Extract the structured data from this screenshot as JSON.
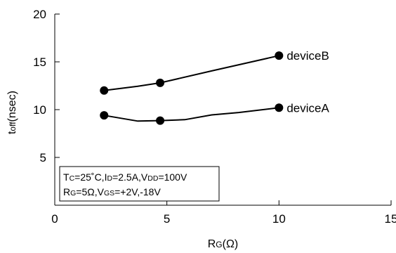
{
  "chart_data": {
    "type": "line",
    "xlabel": {
      "main": "R",
      "sub": "G",
      "rest": "(Ω)"
    },
    "ylabel": {
      "main": "t",
      "sub": "off",
      "rest": "(nsec)"
    },
    "xlim": [
      0,
      15
    ],
    "ylim": [
      0,
      20
    ],
    "xticks": [
      0,
      5,
      10,
      15
    ],
    "yticks": [
      5,
      10,
      15,
      20
    ],
    "grid": false,
    "series": [
      {
        "name": "deviceB",
        "line": [
          [
            2.2,
            12.0
          ],
          [
            3.7,
            12.45
          ],
          [
            4.7,
            12.8
          ],
          [
            7.0,
            14.05
          ],
          [
            10.0,
            15.65
          ]
        ],
        "markers": [
          [
            2.2,
            12.0
          ],
          [
            4.7,
            12.8
          ],
          [
            10.0,
            15.65
          ]
        ]
      },
      {
        "name": "deviceA",
        "line": [
          [
            2.2,
            9.4
          ],
          [
            3.7,
            8.8
          ],
          [
            4.7,
            8.85
          ],
          [
            5.8,
            8.95
          ],
          [
            7.0,
            9.45
          ],
          [
            8.2,
            9.7
          ],
          [
            10.0,
            10.2
          ]
        ],
        "markers": [
          [
            2.2,
            9.4
          ],
          [
            4.7,
            8.85
          ],
          [
            10.0,
            10.2
          ]
        ]
      }
    ],
    "annotation": {
      "line1": [
        {
          "t": "T",
          "sub": false
        },
        {
          "t": "C",
          "sub": true
        },
        {
          "t": "=25˚C,I",
          "sub": false
        },
        {
          "t": "D",
          "sub": true
        },
        {
          "t": "=2.5A,V",
          "sub": false
        },
        {
          "t": "DD",
          "sub": true
        },
        {
          "t": "=100V",
          "sub": false
        }
      ],
      "line2": [
        {
          "t": "R",
          "sub": false
        },
        {
          "t": "G",
          "sub": true
        },
        {
          "t": "=5Ω,V",
          "sub": false
        },
        {
          "t": "GS",
          "sub": true
        },
        {
          "t": "=+2V,-18V",
          "sub": false
        }
      ]
    }
  }
}
